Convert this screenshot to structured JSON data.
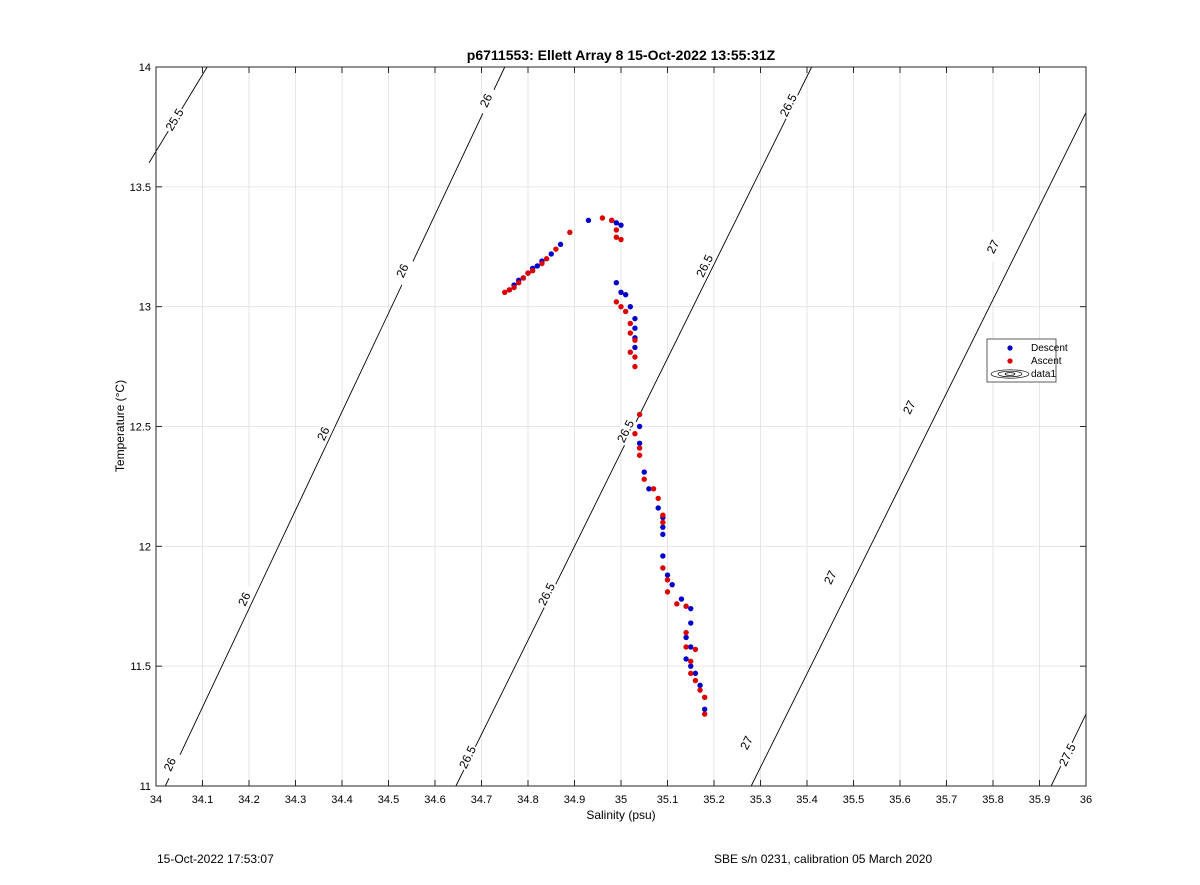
{
  "chart_data": {
    "type": "scatter",
    "title": "p6711553: Ellett Array 8 15-Oct-2022 13:55:31Z",
    "xlabel": "Salinity (psu)",
    "ylabel": "Temperature (°C)",
    "xlim": [
      34,
      36
    ],
    "ylim": [
      11,
      14
    ],
    "grid": true,
    "xticks": [
      "34",
      "34.1",
      "34.2",
      "34.3",
      "34.4",
      "34.5",
      "34.6",
      "34.7",
      "34.8",
      "34.9",
      "35",
      "35.1",
      "35.2",
      "35.3",
      "35.4",
      "35.5",
      "35.6",
      "35.7",
      "35.8",
      "35.9",
      "36"
    ],
    "yticks": [
      "11",
      "11.5",
      "12",
      "12.5",
      "13",
      "13.5",
      "14"
    ],
    "legend": {
      "placement": "right",
      "entries": [
        {
          "name": "Descent",
          "color": "#0000cc",
          "marker": "dot"
        },
        {
          "name": "Ascent",
          "color": "#dd0000",
          "marker": "dot"
        },
        {
          "name": "data1",
          "color": "#000000",
          "marker": "contour"
        }
      ]
    },
    "contours": [
      {
        "level": "25.5",
        "points": [
          [
            33.985,
            13.6
          ],
          [
            34.11,
            14.0
          ]
        ],
        "labels": [
          [
            34.04,
            13.78
          ]
        ]
      },
      {
        "level": "26",
        "points": [
          [
            34.02,
            11.0
          ],
          [
            34.75,
            14.0
          ]
        ],
        "labels": [
          [
            34.03,
            11.09
          ],
          [
            34.19,
            11.78
          ],
          [
            34.36,
            12.47
          ],
          [
            34.53,
            13.15
          ],
          [
            34.71,
            13.86
          ]
        ]
      },
      {
        "level": "26.5",
        "points": [
          [
            34.645,
            11.0
          ],
          [
            35.41,
            14.0
          ]
        ],
        "labels": [
          [
            34.67,
            11.12
          ],
          [
            34.84,
            11.8
          ],
          [
            35.01,
            12.48
          ],
          [
            35.18,
            13.17
          ],
          [
            35.36,
            13.84
          ]
        ]
      },
      {
        "level": "27",
        "points": [
          [
            35.28,
            11.0
          ],
          [
            36.0,
            13.81
          ]
        ],
        "labels": [
          [
            35.27,
            11.18
          ],
          [
            35.45,
            11.87
          ],
          [
            35.62,
            12.58
          ],
          [
            35.8,
            13.25
          ]
        ]
      },
      {
        "level": "27.5",
        "points": [
          [
            35.925,
            11.0
          ],
          [
            36.0,
            11.3
          ]
        ],
        "labels": [
          [
            35.96,
            11.13
          ]
        ]
      }
    ],
    "series": [
      {
        "name": "Descent",
        "color": "#0000cc",
        "points": [
          [
            34.76,
            13.07
          ],
          [
            34.77,
            13.09
          ],
          [
            34.78,
            13.11
          ],
          [
            34.79,
            13.12
          ],
          [
            34.8,
            13.14
          ],
          [
            34.81,
            13.16
          ],
          [
            34.82,
            13.17
          ],
          [
            34.83,
            13.19
          ],
          [
            34.85,
            13.22
          ],
          [
            34.87,
            13.26
          ],
          [
            34.93,
            13.36
          ],
          [
            34.98,
            13.36
          ],
          [
            34.99,
            13.35
          ],
          [
            35.0,
            13.34
          ],
          [
            34.99,
            13.1
          ],
          [
            35.0,
            13.06
          ],
          [
            35.01,
            13.05
          ],
          [
            35.02,
            13.0
          ],
          [
            35.03,
            12.95
          ],
          [
            35.03,
            12.91
          ],
          [
            35.03,
            12.87
          ],
          [
            35.03,
            12.83
          ],
          [
            35.04,
            12.5
          ],
          [
            35.04,
            12.43
          ],
          [
            35.05,
            12.31
          ],
          [
            35.06,
            12.24
          ],
          [
            35.08,
            12.16
          ],
          [
            35.09,
            12.12
          ],
          [
            35.09,
            12.08
          ],
          [
            35.09,
            12.05
          ],
          [
            35.09,
            11.96
          ],
          [
            35.1,
            11.88
          ],
          [
            35.11,
            11.84
          ],
          [
            35.13,
            11.78
          ],
          [
            35.15,
            11.74
          ],
          [
            35.15,
            11.68
          ],
          [
            35.14,
            11.62
          ],
          [
            35.15,
            11.58
          ],
          [
            35.14,
            11.53
          ],
          [
            35.15,
            11.5
          ],
          [
            35.16,
            11.47
          ],
          [
            35.17,
            11.42
          ],
          [
            35.18,
            11.32
          ]
        ]
      },
      {
        "name": "Ascent",
        "color": "#dd0000",
        "points": [
          [
            34.75,
            13.06
          ],
          [
            34.76,
            13.07
          ],
          [
            34.77,
            13.08
          ],
          [
            34.78,
            13.1
          ],
          [
            34.79,
            13.12
          ],
          [
            34.8,
            13.14
          ],
          [
            34.81,
            13.15
          ],
          [
            34.83,
            13.18
          ],
          [
            34.84,
            13.2
          ],
          [
            34.86,
            13.24
          ],
          [
            34.89,
            13.31
          ],
          [
            34.96,
            13.37
          ],
          [
            34.98,
            13.36
          ],
          [
            34.99,
            13.32
          ],
          [
            34.99,
            13.29
          ],
          [
            35.0,
            13.28
          ],
          [
            34.99,
            13.02
          ],
          [
            35.0,
            13.0
          ],
          [
            35.01,
            12.98
          ],
          [
            35.02,
            12.93
          ],
          [
            35.02,
            12.89
          ],
          [
            35.03,
            12.86
          ],
          [
            35.02,
            12.81
          ],
          [
            35.03,
            12.79
          ],
          [
            35.03,
            12.75
          ],
          [
            35.04,
            12.55
          ],
          [
            35.03,
            12.47
          ],
          [
            35.04,
            12.41
          ],
          [
            35.04,
            12.38
          ],
          [
            35.05,
            12.28
          ],
          [
            35.07,
            12.24
          ],
          [
            35.08,
            12.2
          ],
          [
            35.09,
            12.13
          ],
          [
            35.09,
            12.1
          ],
          [
            35.09,
            11.91
          ],
          [
            35.1,
            11.86
          ],
          [
            35.1,
            11.81
          ],
          [
            35.12,
            11.76
          ],
          [
            35.14,
            11.75
          ],
          [
            35.14,
            11.64
          ],
          [
            35.14,
            11.58
          ],
          [
            35.16,
            11.57
          ],
          [
            35.15,
            11.52
          ],
          [
            35.15,
            11.47
          ],
          [
            35.16,
            11.44
          ],
          [
            35.17,
            11.4
          ],
          [
            35.18,
            11.37
          ],
          [
            35.18,
            11.3
          ]
        ]
      }
    ]
  },
  "footer": {
    "timestamp": "15-Oct-2022 17:53:07",
    "instrument": "SBE s/n 0231, calibration 05 March 2020"
  }
}
